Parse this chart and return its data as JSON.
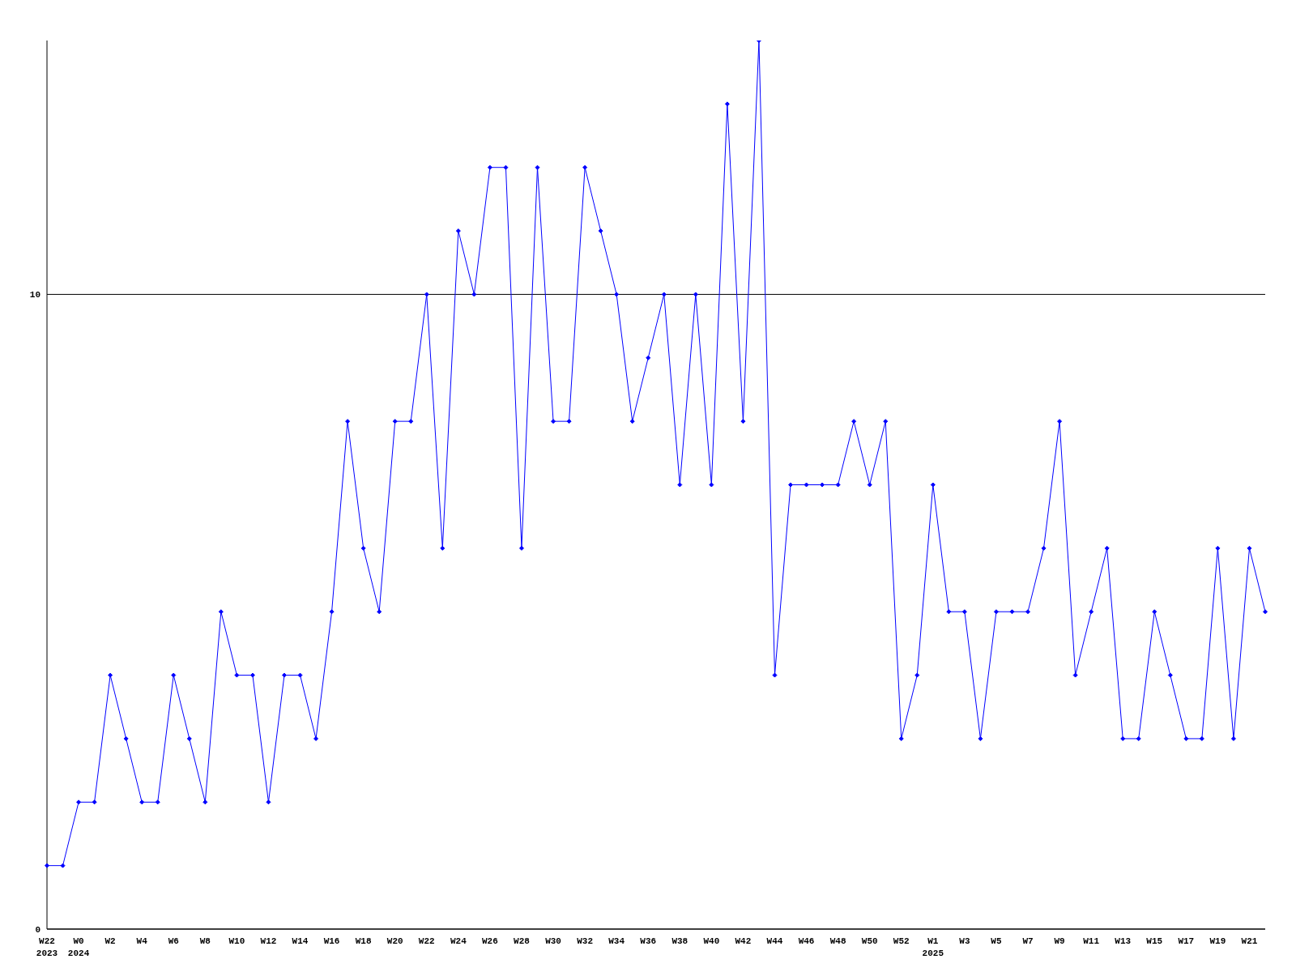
{
  "chart_data": {
    "type": "line",
    "categories": [
      "W22\n2023",
      null,
      "W0\n2024",
      null,
      "W2",
      null,
      "W4",
      null,
      "W6",
      null,
      "W8",
      null,
      "W10",
      null,
      "W12",
      null,
      "W14",
      null,
      "W16",
      null,
      "W18",
      null,
      "W20",
      null,
      "W22",
      null,
      "W24",
      null,
      "W26",
      null,
      "W28",
      null,
      "W30",
      null,
      "W32",
      null,
      "W34",
      null,
      "W36",
      null,
      "W38",
      null,
      "W40",
      null,
      "W42",
      null,
      "W44",
      null,
      "W46",
      null,
      "W48",
      null,
      "W50",
      null,
      "W52",
      null,
      "W1\n2025",
      null,
      "W3",
      null,
      "W5",
      null,
      "W7",
      null,
      "W9",
      null,
      "W11",
      null,
      "W13",
      null,
      "W15",
      null,
      "W17",
      null,
      "W19",
      null,
      "W21",
      null
    ],
    "series": [
      {
        "color": "#0000ff",
        "values": [
          1,
          1,
          2,
          2,
          4,
          3,
          2,
          2,
          4,
          3,
          2,
          5,
          4,
          4,
          2,
          4,
          4,
          3,
          5,
          8,
          6,
          5,
          8,
          8,
          10,
          6,
          11,
          10,
          12,
          12,
          6,
          12,
          8,
          8,
          12,
          11,
          10,
          8,
          9,
          10,
          7,
          10,
          7,
          13,
          8,
          14,
          4,
          7,
          7,
          7,
          7,
          8,
          7,
          8,
          3,
          4,
          7,
          5,
          5,
          3,
          5,
          5,
          5,
          6,
          8,
          4,
          5,
          6,
          3,
          3,
          5,
          4,
          3,
          3,
          6,
          3,
          6,
          5
        ]
      }
    ],
    "ylim": [
      0,
      14
    ],
    "yticks": [
      0,
      10
    ],
    "grid": "y",
    "marker": "diamond",
    "line_style": "solid"
  }
}
